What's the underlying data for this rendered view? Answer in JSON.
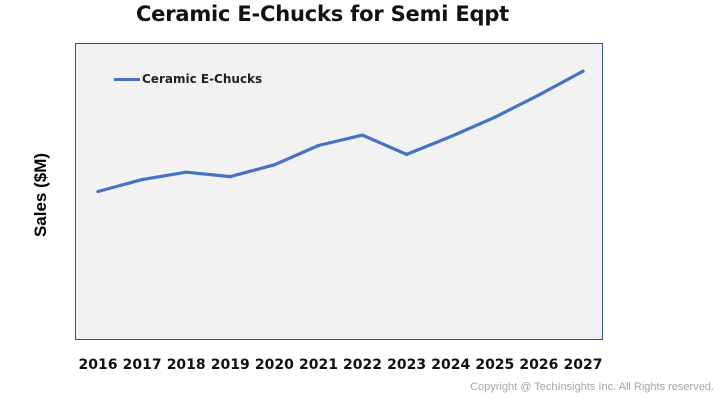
{
  "chart_data": {
    "type": "line",
    "title": "Ceramic E-Chucks for Semi Eqpt",
    "xlabel": "",
    "ylabel": "Sales ($M)",
    "categories": [
      "2016",
      "2017",
      "2018",
      "2019",
      "2020",
      "2021",
      "2022",
      "2023",
      "2024",
      "2025",
      "2026",
      "2027"
    ],
    "series": [
      {
        "name": "Ceramic E-Chucks",
        "color": "#4472c4",
        "values": [
          100,
          108,
          113,
          110,
          118,
          131,
          138,
          125,
          137,
          150,
          165,
          181
        ]
      }
    ],
    "ylim": [
      0,
      200
    ],
    "grid": false,
    "legend_position": "top-left",
    "y_tick_labels_shown": false
  },
  "footer": {
    "copyright": "Copyright @ TechInsights Inc. All Rights reserved."
  }
}
